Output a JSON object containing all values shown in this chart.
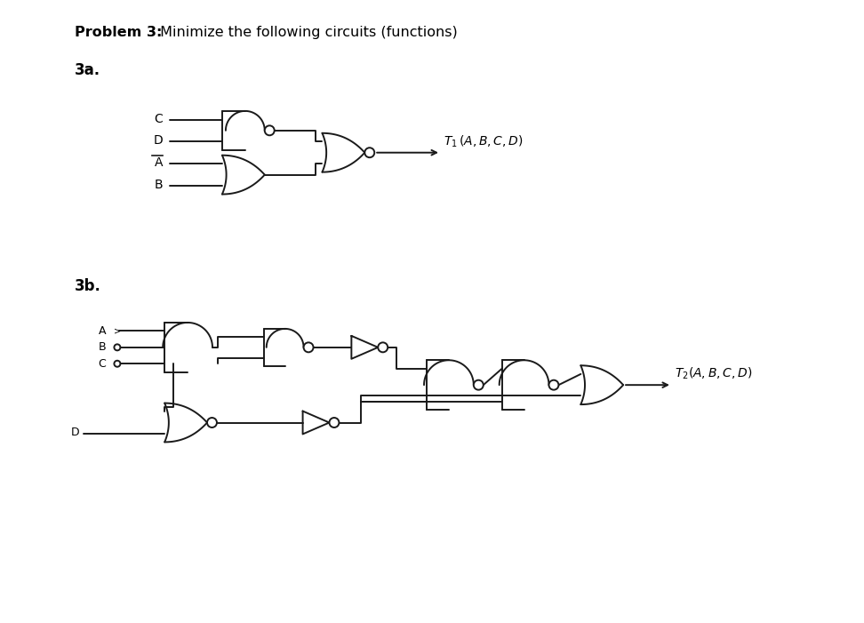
{
  "bg_color": "#ffffff",
  "line_color": "#1a1a1a",
  "lw": 1.4,
  "title_bold": "Problem 3:",
  "title_rest": " Minimize the following circuits (functions)",
  "label_a": "3a.",
  "label_b": "3b."
}
